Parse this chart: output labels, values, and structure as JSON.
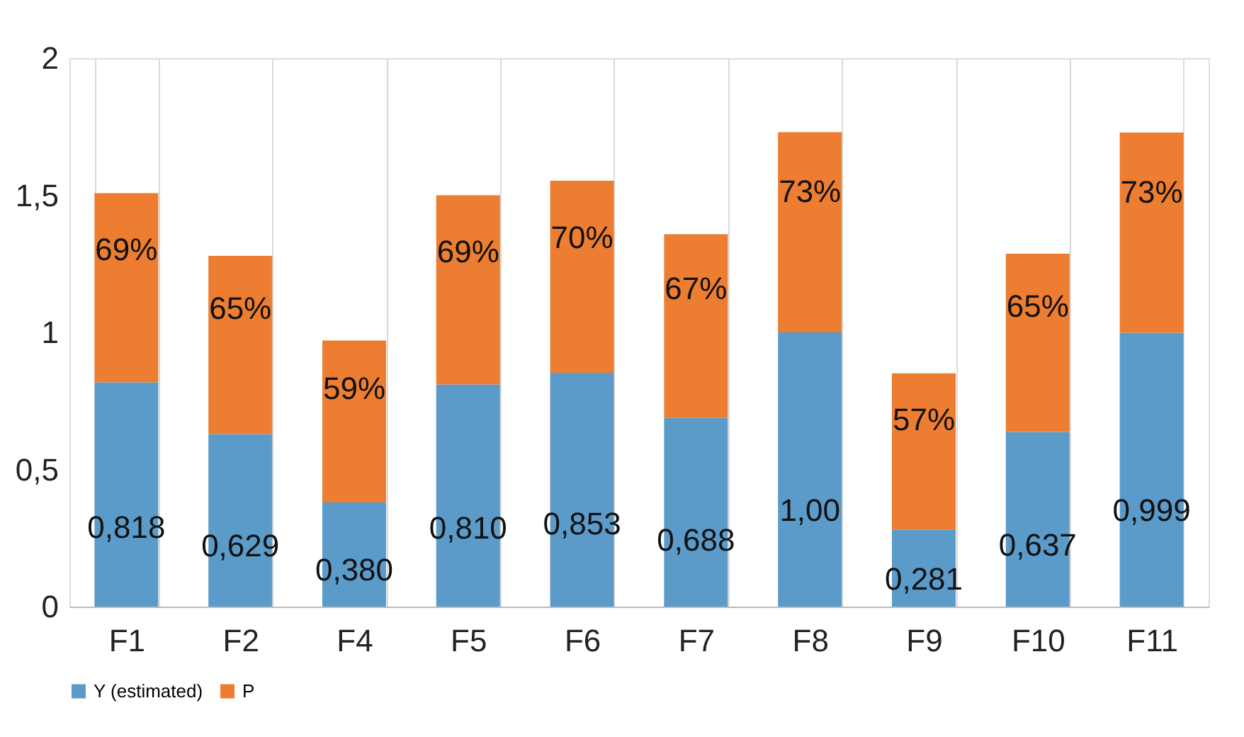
{
  "chart_data": {
    "type": "bar",
    "stacked": true,
    "categories": [
      "F1",
      "F2",
      "F4",
      "F5",
      "F6",
      "F7",
      "F8",
      "F9",
      "F10",
      "F11"
    ],
    "series": [
      {
        "name": "Y (estimated)",
        "color": "#5b9bc9",
        "values": [
          0.818,
          0.629,
          0.38,
          0.81,
          0.853,
          0.688,
          1.0,
          0.281,
          0.637,
          0.999
        ],
        "value_labels": [
          "0,818",
          "0,629",
          "0,380",
          "0,810",
          "0,853",
          "0,688",
          "1,00",
          "0,281",
          "0,637",
          "0,999"
        ]
      },
      {
        "name": "P",
        "color": "#ed7d31",
        "values": [
          0.69,
          0.65,
          0.59,
          0.69,
          0.7,
          0.67,
          0.73,
          0.57,
          0.65,
          0.73
        ],
        "value_labels": [
          "69%",
          "65%",
          "59%",
          "69%",
          "70%",
          "67%",
          "73%",
          "57%",
          "65%",
          "73%"
        ]
      }
    ],
    "ylim": [
      0,
      2
    ],
    "yticks": [
      0,
      {
        "value": 0.5,
        "label": "0,5"
      },
      1,
      {
        "value": 1.5,
        "label": "1,5"
      },
      2
    ],
    "grid": "x",
    "legend": "bottom"
  }
}
